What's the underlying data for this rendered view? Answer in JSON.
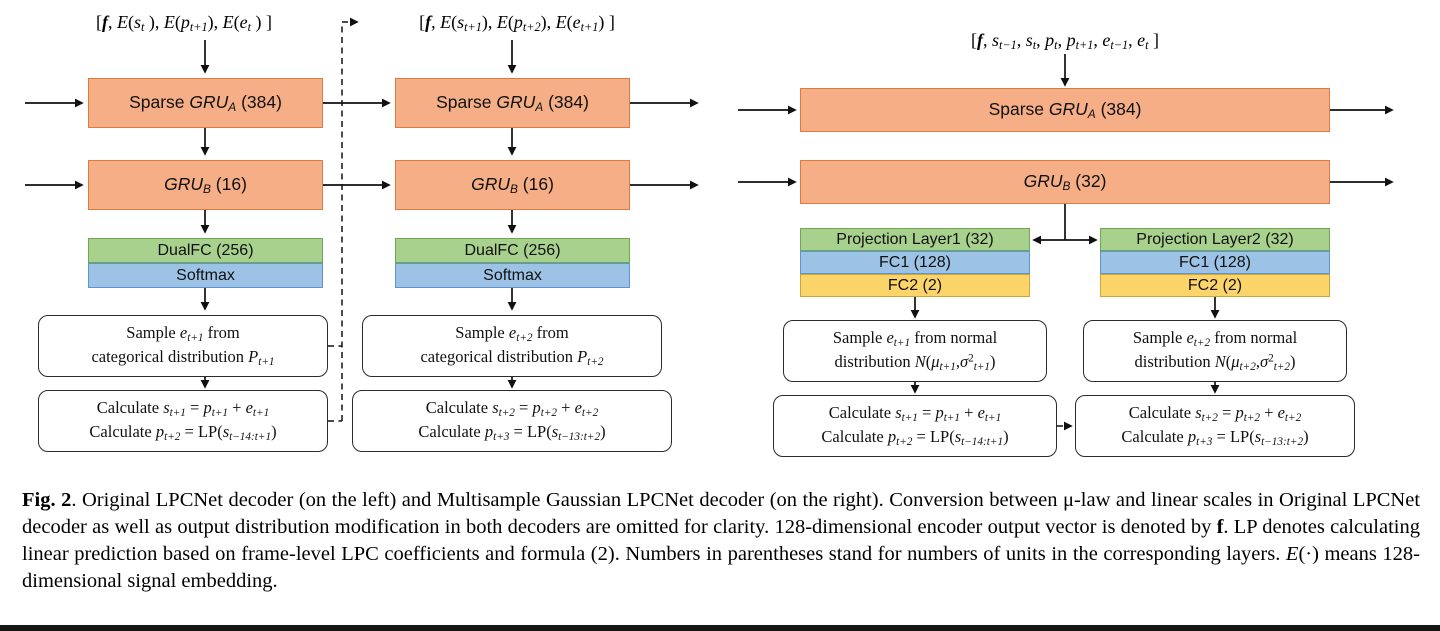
{
  "colors": {
    "line": "#111111",
    "orange_fill": "#F5AE86",
    "orange_border": "#DF7B3E",
    "green_fill": "#A9D18E",
    "green_border": "#6FA84F",
    "blue_fill": "#9CC3E5",
    "blue_border": "#5E94CF",
    "yellow_fill": "#FBD46A",
    "yellow_border": "#CFA43C",
    "box_border": "#2B2B2B"
  },
  "shared": {
    "sparse_gru_a": [
      {
        "t": "Sparse ",
        "s": ""
      },
      {
        "t": "GRU",
        "s": "i"
      },
      {
        "t": "A",
        "s": "subi"
      },
      {
        "t": " (384)",
        "s": ""
      }
    ],
    "gru_b_16": [
      {
        "t": "GRU",
        "s": "i"
      },
      {
        "t": "B",
        "s": "subi"
      },
      {
        "t": " (16)",
        "s": ""
      }
    ],
    "gru_b_32": [
      {
        "t": "GRU",
        "s": "i"
      },
      {
        "t": "B",
        "s": "subi"
      },
      {
        "t": " (32)",
        "s": ""
      }
    ],
    "dualfc_label": "DualFC (256)",
    "softmax_label": "Softmax",
    "calc1": {
      "line1": [
        {
          "t": "Calculate ",
          "s": ""
        },
        {
          "t": "s",
          "s": "i"
        },
        {
          "t": "t+1",
          "s": "subi"
        },
        {
          "t": " =  ",
          "s": ""
        },
        {
          "t": "p",
          "s": "i"
        },
        {
          "t": "t+1",
          "s": "subi"
        },
        {
          "t": " + ",
          "s": ""
        },
        {
          "t": "e",
          "s": "i"
        },
        {
          "t": "t+1",
          "s": "subi"
        }
      ],
      "line2": [
        {
          "t": "Calculate ",
          "s": ""
        },
        {
          "t": "p",
          "s": "i"
        },
        {
          "t": "t+2",
          "s": "subi"
        },
        {
          "t": " = LP(",
          "s": ""
        },
        {
          "t": "s",
          "s": "i"
        },
        {
          "t": "t−14:t+1",
          "s": "subi"
        },
        {
          "t": ")",
          "s": ""
        }
      ]
    },
    "calc2": {
      "line1": [
        {
          "t": "Calculate ",
          "s": ""
        },
        {
          "t": "s",
          "s": "i"
        },
        {
          "t": "t+2",
          "s": "subi"
        },
        {
          "t": " =  ",
          "s": ""
        },
        {
          "t": "p",
          "s": "i"
        },
        {
          "t": "t+2",
          "s": "subi"
        },
        {
          "t": " + ",
          "s": ""
        },
        {
          "t": "e",
          "s": "i"
        },
        {
          "t": "t+2",
          "s": "subi"
        }
      ],
      "line2": [
        {
          "t": "Calculate ",
          "s": ""
        },
        {
          "t": "p",
          "s": "i"
        },
        {
          "t": "t+3",
          "s": "subi"
        },
        {
          "t": " = LP(",
          "s": ""
        },
        {
          "t": "s",
          "s": "i"
        },
        {
          "t": "t−13:t+2",
          "s": "subi"
        },
        {
          "t": ")",
          "s": ""
        }
      ]
    }
  },
  "left": {
    "input1": [
      {
        "t": "[",
        "s": ""
      },
      {
        "t": "f",
        "s": "bi"
      },
      {
        "t": ", ",
        "s": ""
      },
      {
        "t": "E",
        "s": "i"
      },
      {
        "t": "(",
        "s": ""
      },
      {
        "t": "s",
        "s": "i"
      },
      {
        "t": "t",
        "s": "subi"
      },
      {
        "t": " ), ",
        "s": ""
      },
      {
        "t": "E",
        "s": "i"
      },
      {
        "t": "(",
        "s": ""
      },
      {
        "t": "p",
        "s": "i"
      },
      {
        "t": "t+1",
        "s": "subi"
      },
      {
        "t": "), ",
        "s": ""
      },
      {
        "t": "E",
        "s": "i"
      },
      {
        "t": "(",
        "s": ""
      },
      {
        "t": "e",
        "s": "i"
      },
      {
        "t": "t",
        "s": "subi"
      },
      {
        "t": " ) ]",
        "s": ""
      }
    ],
    "input2": [
      {
        "t": "[",
        "s": ""
      },
      {
        "t": "f",
        "s": "bi"
      },
      {
        "t": ", ",
        "s": ""
      },
      {
        "t": "E",
        "s": "i"
      },
      {
        "t": "(",
        "s": ""
      },
      {
        "t": "s",
        "s": "i"
      },
      {
        "t": "t+1",
        "s": "subi"
      },
      {
        "t": "), ",
        "s": ""
      },
      {
        "t": "E",
        "s": "i"
      },
      {
        "t": "(",
        "s": ""
      },
      {
        "t": "p",
        "s": "i"
      },
      {
        "t": "t+2",
        "s": "subi"
      },
      {
        "t": "), ",
        "s": ""
      },
      {
        "t": "E",
        "s": "i"
      },
      {
        "t": "(",
        "s": ""
      },
      {
        "t": "e",
        "s": "i"
      },
      {
        "t": "t+1",
        "s": "subi"
      },
      {
        "t": ") ]",
        "s": ""
      }
    ],
    "sample1": {
      "line1": [
        {
          "t": "Sample ",
          "s": ""
        },
        {
          "t": "e",
          "s": "i"
        },
        {
          "t": "t+1",
          "s": "subi"
        },
        {
          "t": " from",
          "s": ""
        }
      ],
      "line2": [
        {
          "t": "categorical distribution ",
          "s": ""
        },
        {
          "t": "P",
          "s": "i"
        },
        {
          "t": "t+1",
          "s": "subi"
        }
      ]
    },
    "sample2": {
      "line1": [
        {
          "t": "Sample ",
          "s": ""
        },
        {
          "t": "e",
          "s": "i"
        },
        {
          "t": "t+2",
          "s": "subi"
        },
        {
          "t": " from",
          "s": ""
        }
      ],
      "line2": [
        {
          "t": "categorical distribution ",
          "s": ""
        },
        {
          "t": "P",
          "s": "i"
        },
        {
          "t": "t+2",
          "s": "subi"
        }
      ]
    }
  },
  "right": {
    "input": [
      {
        "t": "[",
        "s": ""
      },
      {
        "t": "f",
        "s": "bi"
      },
      {
        "t": ", ",
        "s": ""
      },
      {
        "t": "s",
        "s": "i"
      },
      {
        "t": "t−1",
        "s": "subi"
      },
      {
        "t": ", ",
        "s": ""
      },
      {
        "t": "s",
        "s": "i"
      },
      {
        "t": "t",
        "s": "subi"
      },
      {
        "t": ", ",
        "s": ""
      },
      {
        "t": "p",
        "s": "i"
      },
      {
        "t": "t",
        "s": "subi"
      },
      {
        "t": ", ",
        "s": ""
      },
      {
        "t": "p",
        "s": "i"
      },
      {
        "t": "t+1",
        "s": "subi"
      },
      {
        "t": ", ",
        "s": ""
      },
      {
        "t": "e",
        "s": "i"
      },
      {
        "t": "t−1",
        "s": "subi"
      },
      {
        "t": ", ",
        "s": ""
      },
      {
        "t": "e",
        "s": "i"
      },
      {
        "t": "t",
        "s": "subi"
      },
      {
        "t": " ]",
        "s": ""
      }
    ],
    "projection1": "Projection Layer1 (32)",
    "projection2": "Projection Layer2 (32)",
    "fc1": "FC1 (128)",
    "fc2": "FC2 (2)",
    "sample1": {
      "line1": [
        {
          "t": "Sample ",
          "s": ""
        },
        {
          "t": "e",
          "s": "i"
        },
        {
          "t": "t+1",
          "s": "subi"
        },
        {
          "t": " from normal",
          "s": ""
        }
      ],
      "line2": [
        {
          "t": "distribution ",
          "s": ""
        },
        {
          "t": "N",
          "s": "i"
        },
        {
          "t": "(",
          "s": ""
        },
        {
          "t": "μ",
          "s": "i"
        },
        {
          "t": "t+1",
          "s": "subi"
        },
        {
          "t": ",",
          "s": ""
        },
        {
          "t": "σ",
          "s": "i"
        },
        {
          "t": "2",
          "s": "sup"
        },
        {
          "t": "t+1",
          "s": "subi"
        },
        {
          "t": ")",
          "s": ""
        }
      ]
    },
    "sample2": {
      "line1": [
        {
          "t": "Sample ",
          "s": ""
        },
        {
          "t": "e",
          "s": "i"
        },
        {
          "t": "t+2",
          "s": "subi"
        },
        {
          "t": " from normal",
          "s": ""
        }
      ],
      "line2": [
        {
          "t": "distribution ",
          "s": ""
        },
        {
          "t": "N",
          "s": "i"
        },
        {
          "t": "(",
          "s": ""
        },
        {
          "t": "μ",
          "s": "i"
        },
        {
          "t": "t+2",
          "s": "subi"
        },
        {
          "t": ",",
          "s": ""
        },
        {
          "t": "σ",
          "s": "i"
        },
        {
          "t": "2",
          "s": "sup"
        },
        {
          "t": "t+2",
          "s": "subi"
        },
        {
          "t": ")",
          "s": ""
        }
      ]
    }
  },
  "caption": {
    "fig_label": "Fig. 2",
    "sep": ".  ",
    "text1": "Original LPCNet decoder (on the left) and Multisample Gaussian LPCNet decoder (on the right).  Conversion between μ-law and linear scales in Original LPCNet decoder as well as output distribution modification in both decoders are omitted for clarity.  128-dimensional encoder output vector is denoted by ",
    "f_bold": "f",
    "text2": ".  LP denotes calculating linear prediction based on frame-level LPC coefficients and formula (2).  Numbers in parentheses stand for numbers of units in the corresponding layers.  ",
    "e_italic": "E",
    "text3": "(·) means 128-dimensional signal embedding."
  }
}
